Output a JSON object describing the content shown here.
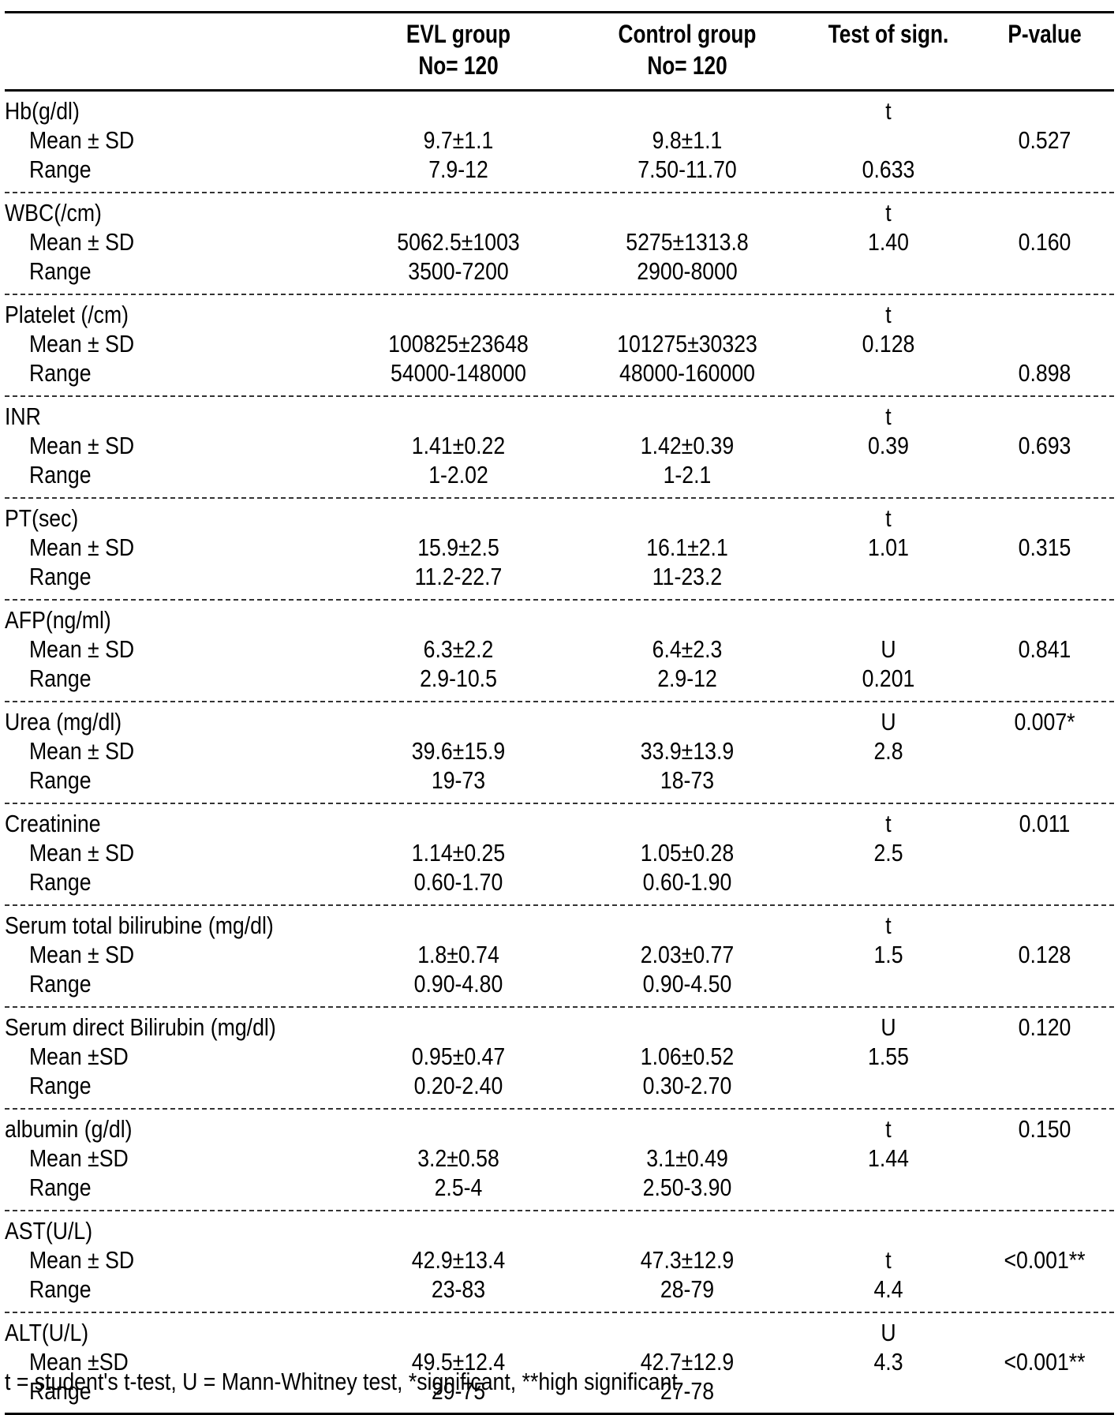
{
  "header": {
    "col1": "",
    "col2_line1": "EVL group",
    "col2_line2": "No= 120",
    "col3_line1": "Control group",
    "col3_line2": "No= 120",
    "col4": "Test of sign.",
    "col5": "P-value"
  },
  "rows": [
    {
      "label": "Hb(g/dl)",
      "test_r0": "t",
      "p_r0": "",
      "mean_label": "Mean ± SD",
      "evl_mean": "9.7±1.1",
      "ctl_mean": "9.8±1.1",
      "test_r1": "",
      "p_r1": "0.527",
      "range_label": "Range",
      "evl_range": "7.9-12",
      "ctl_range": "7.50-11.70",
      "test_r2": "0.633",
      "p_r2": ""
    },
    {
      "label": "WBC(/cm)",
      "test_r0": "t",
      "p_r0": "",
      "mean_label": "Mean ± SD",
      "evl_mean": "5062.5±1003",
      "ctl_mean": "5275±1313.8",
      "test_r1": "1.40",
      "p_r1": "0.160",
      "range_label": "Range",
      "evl_range": "3500-7200",
      "ctl_range": "2900-8000",
      "test_r2": "",
      "p_r2": ""
    },
    {
      "label": "Platelet (/cm)",
      "test_r0": "t",
      "p_r0": "",
      "mean_label": "Mean ± SD",
      "evl_mean": "100825±23648",
      "ctl_mean": "101275±30323",
      "test_r1": "0.128",
      "p_r1": "",
      "range_label": "Range",
      "evl_range": "54000-148000",
      "ctl_range": "48000-160000",
      "test_r2": "",
      "p_r2": "0.898"
    },
    {
      "label": "INR",
      "test_r0": "t",
      "p_r0": "",
      "mean_label": "Mean ± SD",
      "evl_mean": "1.41±0.22",
      "ctl_mean": "1.42±0.39",
      "test_r1": "0.39",
      "p_r1": "0.693",
      "range_label": "Range",
      "evl_range": "1-2.02",
      "ctl_range": "1-2.1",
      "test_r2": "",
      "p_r2": ""
    },
    {
      "label": "PT(sec)",
      "test_r0": "t",
      "p_r0": "",
      "mean_label": "Mean ± SD",
      "evl_mean": "15.9±2.5",
      "ctl_mean": "16.1±2.1",
      "test_r1": "1.01",
      "p_r1": "0.315",
      "range_label": "Range",
      "evl_range": "11.2-22.7",
      "ctl_range": "11-23.2",
      "test_r2": "",
      "p_r2": ""
    },
    {
      "label": "AFP(ng/ml)",
      "test_r0": "",
      "p_r0": "",
      "mean_label": "Mean ± SD",
      "evl_mean": "6.3±2.2",
      "ctl_mean": "6.4±2.3",
      "test_r1": "U",
      "p_r1": "0.841",
      "range_label": "Range",
      "evl_range": "2.9-10.5",
      "ctl_range": "2.9-12",
      "test_r2": "0.201",
      "p_r2": ""
    },
    {
      "label": "Urea (mg/dl)",
      "test_r0": "U",
      "p_r0": "0.007*",
      "mean_label": "Mean ± SD",
      "evl_mean": "39.6±15.9",
      "ctl_mean": "33.9±13.9",
      "test_r1": "2.8",
      "p_r1": "",
      "range_label": "Range",
      "evl_range": "19-73",
      "ctl_range": "18-73",
      "test_r2": "",
      "p_r2": ""
    },
    {
      "label": "Creatinine",
      "test_r0": "t",
      "p_r0": "0.011",
      "mean_label": "Mean ± SD",
      "evl_mean": "1.14±0.25",
      "ctl_mean": "1.05±0.28",
      "test_r1": "2.5",
      "p_r1": "",
      "range_label": "Range",
      "evl_range": "0.60-1.70",
      "ctl_range": "0.60-1.90",
      "test_r2": "",
      "p_r2": ""
    },
    {
      "label": "Serum total bilirubine (mg/dl)",
      "test_r0": "t",
      "p_r0": "",
      "mean_label": "Mean ± SD",
      "evl_mean": "1.8±0.74",
      "ctl_mean": "2.03±0.77",
      "test_r1": "1.5",
      "p_r1": "0.128",
      "range_label": "Range",
      "evl_range": "0.90-4.80",
      "ctl_range": "0.90-4.50",
      "test_r2": "",
      "p_r2": ""
    },
    {
      "label": "Serum direct Bilirubin (mg/dl)",
      "test_r0": "U",
      "p_r0": "0.120",
      "mean_label": "Mean ±SD",
      "evl_mean": "0.95±0.47",
      "ctl_mean": "1.06±0.52",
      "test_r1": "1.55",
      "p_r1": "",
      "range_label": "Range",
      "evl_range": "0.20-2.40",
      "ctl_range": "0.30-2.70",
      "test_r2": "",
      "p_r2": ""
    },
    {
      "label": "albumin (g/dl)",
      "test_r0": "t",
      "p_r0": "0.150",
      "mean_label": "Mean ±SD",
      "evl_mean": "3.2±0.58",
      "ctl_mean": "3.1±0.49",
      "test_r1": "1.44",
      "p_r1": "",
      "range_label": "Range",
      "evl_range": "2.5-4",
      "ctl_range": "2.50-3.90",
      "test_r2": "",
      "p_r2": ""
    },
    {
      "label": "AST(U/L)",
      "test_r0": "",
      "p_r0": "",
      "mean_label": "Mean ± SD",
      "evl_mean": "42.9±13.4",
      "ctl_mean": "47.3±12.9",
      "test_r1": "t",
      "p_r1": "<0.001**",
      "range_label": "Range",
      "evl_range": "23-83",
      "ctl_range": "28-79",
      "test_r2": "4.4",
      "p_r2": ""
    },
    {
      "label": "ALT(U/L)",
      "test_r0": "U",
      "p_r0": "",
      "mean_label": "Mean ±SD",
      "evl_mean": "49.5±12.4",
      "ctl_mean": "42.7±12.9",
      "test_r1": "4.3",
      "p_r1": "<0.001**",
      "range_label": "Range",
      "evl_range": "29-75",
      "ctl_range": "27-78",
      "test_r2": "",
      "p_r2": ""
    }
  ],
  "footnote": "t = student's t-test,  U = Mann-Whitney test,  *significant,  **high significant"
}
